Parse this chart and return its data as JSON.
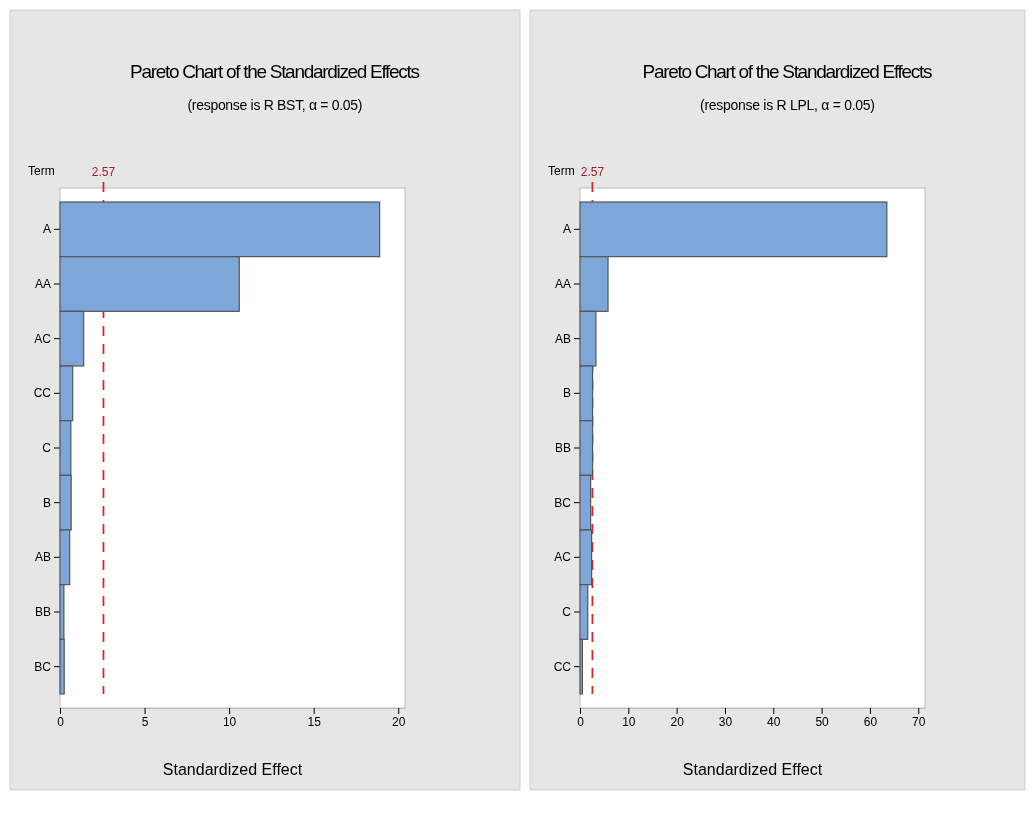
{
  "chart_data": [
    {
      "type": "bar",
      "title": "Pareto Chart of the Standardized Effects",
      "subtitle": "(response is R BST, α = 0.05)",
      "xlabel": "Standardized Effect",
      "ylabel": "Term",
      "orientation": "horizontal",
      "categories": [
        "A",
        "AA",
        "AC",
        "CC",
        "C",
        "B",
        "AB",
        "BB",
        "BC"
      ],
      "values": [
        18.9,
        10.6,
        1.4,
        0.75,
        0.64,
        0.66,
        0.57,
        0.23,
        0.25
      ],
      "color": "#7da7d9",
      "xlim": [
        0,
        20.4
      ],
      "xticks": [
        0,
        5,
        10,
        15,
        20
      ],
      "ref_lines": [
        {
          "axis": "x",
          "value": 2.57,
          "label": "2.57",
          "color": "#d62728",
          "line_style": "dashed"
        }
      ]
    },
    {
      "type": "bar",
      "title": "Pareto Chart of the Standardized Effects",
      "subtitle": "(response is R LPL, α = 0.05)",
      "xlabel": "Standardized Effect",
      "ylabel": "Term",
      "orientation": "horizontal",
      "categories": [
        "A",
        "AA",
        "AB",
        "B",
        "BB",
        "BC",
        "AC",
        "C",
        "CC"
      ],
      "values": [
        63.5,
        5.8,
        3.3,
        2.6,
        2.6,
        2.2,
        2.4,
        1.6,
        0.5
      ],
      "color": "#7da7d9",
      "xlim": [
        0,
        71.4
      ],
      "xticks": [
        0,
        10,
        20,
        30,
        40,
        50,
        60,
        70
      ],
      "ref_lines": [
        {
          "axis": "x",
          "value": 2.57,
          "label": "2.57",
          "color": "#d62728",
          "line_style": "dashed"
        }
      ]
    }
  ]
}
